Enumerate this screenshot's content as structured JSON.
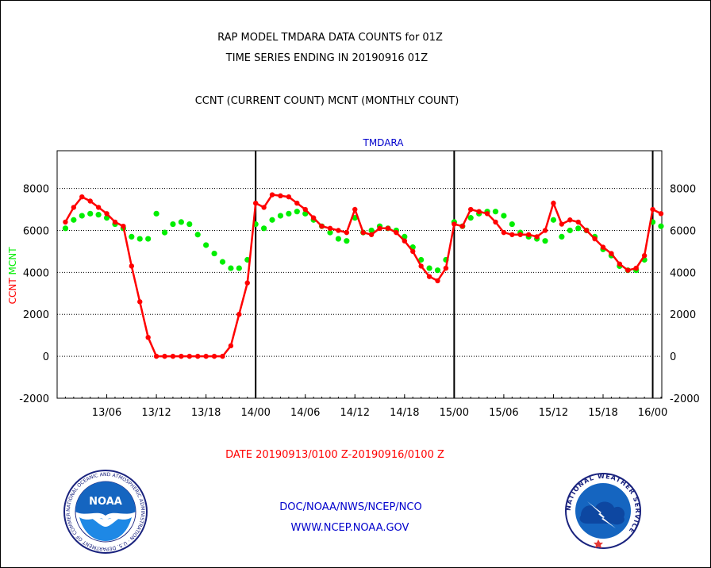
{
  "header": {
    "title_line1": "RAP MODEL TMDARA DATA COUNTS for 01Z",
    "title_line2": "TIME SERIES ENDING IN 20190916 01Z",
    "subtitle": "CCNT (CURRENT COUNT) MCNT (MONTHLY COUNT)"
  },
  "footer": {
    "date_range": "DATE 20190913/0100 Z-20190916/0100 Z",
    "org": "DOC/NOAA/NWS/NCEP/NCO",
    "url": "WWW.NCEP.NOAA.GOV"
  },
  "logos": {
    "noaa_text": "NOAA",
    "noaa_ring": "NATIONAL OCEANIC AND ATMOSPHERIC ADMINISTRATION · U.S. DEPARTMENT OF COMMERCE",
    "nws_ring": "NATIONAL WEATHER SERVICE"
  },
  "colors": {
    "ccnt": "#ff0000",
    "mcnt": "#00ee00",
    "label_blue": "#0000cc"
  },
  "chart_data": {
    "type": "line",
    "title": "TMDARA",
    "ylabel_left": [
      "CCNT",
      "MCNT"
    ],
    "x_unit": "hours since 13/01",
    "xlim": [
      -1,
      72.1
    ],
    "ylim": [
      -2000,
      9800
    ],
    "yticks": [
      -2000,
      0,
      2000,
      4000,
      6000,
      8000
    ],
    "xtick_labels": [
      {
        "label": "13/06",
        "x": 5
      },
      {
        "label": "13/12",
        "x": 11
      },
      {
        "label": "13/18",
        "x": 17
      },
      {
        "label": "14/00",
        "x": 23
      },
      {
        "label": "14/06",
        "x": 29
      },
      {
        "label": "14/12",
        "x": 35
      },
      {
        "label": "14/18",
        "x": 41
      },
      {
        "label": "15/00",
        "x": 47
      },
      {
        "label": "15/06",
        "x": 53
      },
      {
        "label": "15/12",
        "x": 59
      },
      {
        "label": "15/18",
        "x": 65
      },
      {
        "label": "16/00",
        "x": 71
      }
    ],
    "day_lines": [
      23,
      47,
      71
    ],
    "grid": true,
    "series": [
      {
        "name": "CCNT",
        "color": "#ff0000",
        "values": [
          6400,
          7100,
          7600,
          7400,
          7100,
          6800,
          6400,
          6200,
          4300,
          2600,
          900,
          0,
          0,
          0,
          0,
          0,
          0,
          0,
          0,
          0,
          500,
          2000,
          3500,
          7300,
          7100,
          7700,
          7650,
          7600,
          7300,
          7000,
          6600,
          6200,
          6100,
          6000,
          5900,
          7000,
          5900,
          5800,
          6100,
          6100,
          5900,
          5500,
          5000,
          4300,
          3800,
          3600,
          4200,
          6300,
          6200,
          7000,
          6900,
          6800,
          6400,
          5900,
          5800,
          5800,
          5800,
          5700,
          6000,
          7300,
          6300,
          6500,
          6400,
          6000,
          5600,
          5200,
          4900,
          4400,
          4100,
          4200,
          4800,
          7000,
          6800
        ]
      },
      {
        "name": "MCNT",
        "color": "#00ee00",
        "values": [
          6100,
          6500,
          6700,
          6800,
          6750,
          6600,
          6300,
          6100,
          5700,
          5600,
          5600,
          6800,
          5900,
          6300,
          6400,
          6300,
          5800,
          5300,
          4900,
          4500,
          4200,
          4200,
          4600,
          6300,
          6100,
          6500,
          6700,
          6800,
          6900,
          6800,
          6500,
          6200,
          5900,
          5600,
          5500,
          6600,
          5900,
          6000,
          6200,
          6100,
          6000,
          5700,
          5200,
          4600,
          4200,
          4100,
          4600,
          6400,
          6200,
          6600,
          6800,
          6900,
          6900,
          6700,
          6300,
          5900,
          5700,
          5600,
          5500,
          6500,
          5700,
          6000,
          6100,
          6000,
          5700,
          5100,
          4800,
          4300,
          4100,
          4100,
          4600,
          6400,
          6200
        ]
      }
    ]
  }
}
